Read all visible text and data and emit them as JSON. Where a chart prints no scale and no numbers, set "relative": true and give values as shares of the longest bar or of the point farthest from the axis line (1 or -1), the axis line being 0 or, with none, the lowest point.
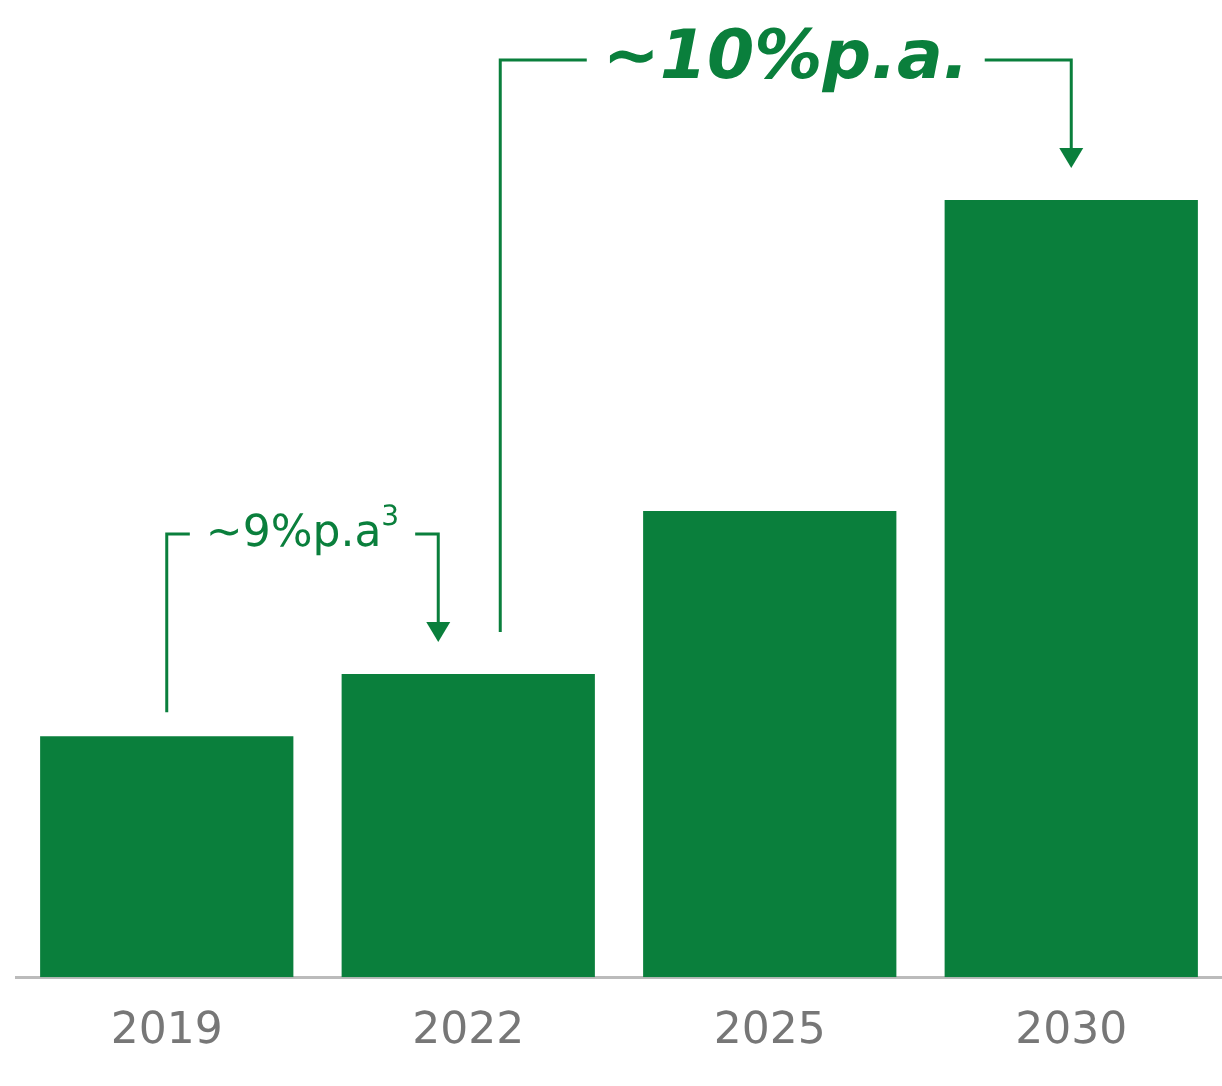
{
  "chart_data": {
    "type": "bar",
    "relative": true,
    "categories": [
      "2019",
      "2022",
      "2025",
      "2030"
    ],
    "values": [
      0.31,
      0.39,
      0.6,
      1
    ],
    "color": "#0a7f3c",
    "annotations": [
      "~9%p.a$^{3}$",
      "~10%p.a."
    ],
    "grid": false,
    "legend": false
  }
}
